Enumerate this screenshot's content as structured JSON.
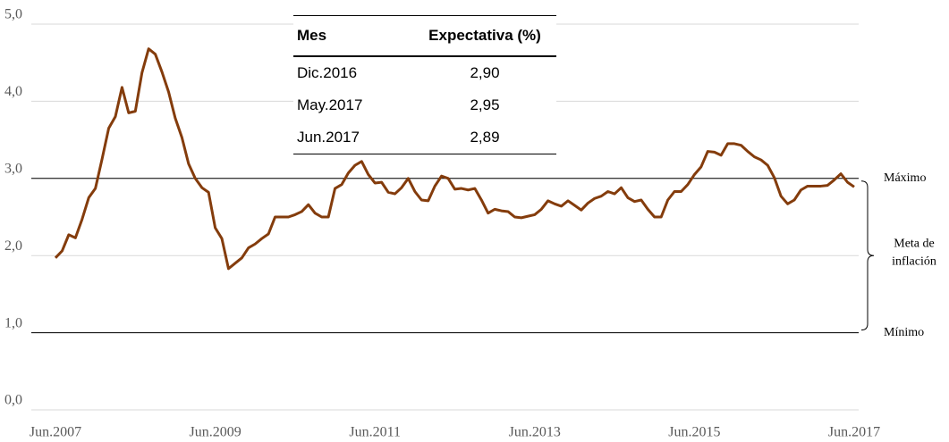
{
  "chart_data": {
    "type": "line",
    "categories": [
      "Jun.2007",
      null,
      null,
      null,
      null,
      null,
      null,
      null,
      null,
      null,
      null,
      null,
      null,
      null,
      null,
      null,
      null,
      null,
      null,
      null,
      null,
      null,
      null,
      null,
      "Jun.2009",
      null,
      null,
      null,
      null,
      null,
      null,
      null,
      null,
      null,
      null,
      null,
      null,
      null,
      null,
      null,
      null,
      null,
      null,
      null,
      null,
      null,
      null,
      null,
      "Jun.2011",
      null,
      null,
      null,
      null,
      null,
      null,
      null,
      null,
      null,
      null,
      null,
      null,
      null,
      null,
      null,
      null,
      null,
      null,
      null,
      null,
      null,
      null,
      null,
      "Jun.2013",
      null,
      null,
      null,
      null,
      null,
      null,
      null,
      null,
      null,
      null,
      null,
      null,
      null,
      null,
      null,
      null,
      null,
      null,
      null,
      null,
      null,
      null,
      null,
      "Jun.2015",
      null,
      null,
      null,
      null,
      null,
      null,
      null,
      null,
      null,
      null,
      null,
      null,
      null,
      null,
      null,
      null,
      null,
      null,
      null,
      null,
      null,
      null,
      null,
      "Jun.2017"
    ],
    "series": [
      {
        "color": "#843c0c",
        "values": [
          1.97,
          2.06,
          2.27,
          2.23,
          2.47,
          2.75,
          2.87,
          3.25,
          3.65,
          3.8,
          4.18,
          3.85,
          3.87,
          4.37,
          4.68,
          4.61,
          4.38,
          4.12,
          3.78,
          3.53,
          3.19,
          3.0,
          2.88,
          2.82,
          2.36,
          2.22,
          1.83,
          1.9,
          1.97,
          2.1,
          2.15,
          2.22,
          2.28,
          2.5,
          2.5,
          2.5,
          2.53,
          2.57,
          2.66,
          2.55,
          2.5,
          2.5,
          2.87,
          2.92,
          3.07,
          3.17,
          3.22,
          3.05,
          2.94,
          2.95,
          2.82,
          2.8,
          2.88,
          3.0,
          2.83,
          2.72,
          2.71,
          2.9,
          3.03,
          3.0,
          2.86,
          2.87,
          2.85,
          2.87,
          2.72,
          2.55,
          2.6,
          2.58,
          2.57,
          2.5,
          2.49,
          2.51,
          2.53,
          2.6,
          2.71,
          2.67,
          2.64,
          2.71,
          2.65,
          2.59,
          2.68,
          2.74,
          2.77,
          2.83,
          2.8,
          2.88,
          2.75,
          2.7,
          2.72,
          2.6,
          2.5,
          2.5,
          2.72,
          2.83,
          2.83,
          2.92,
          3.05,
          3.15,
          3.35,
          3.34,
          3.3,
          3.45,
          3.45,
          3.43,
          3.35,
          3.28,
          3.24,
          3.17,
          3.01,
          2.77,
          2.67,
          2.72,
          2.85,
          2.9,
          2.9,
          2.9,
          2.91,
          2.98,
          3.06,
          2.95,
          2.89
        ]
      }
    ],
    "ylim": [
      0,
      5
    ],
    "yticks": [
      {
        "value": 0,
        "label": "0,0"
      },
      {
        "value": 1,
        "label": "1,0"
      },
      {
        "value": 2,
        "label": "2,0"
      },
      {
        "value": 3,
        "label": "3,0"
      },
      {
        "value": 4,
        "label": "4,0"
      },
      {
        "value": 5,
        "label": "5,0"
      }
    ],
    "grid": true,
    "target_lines": [
      {
        "value": 3,
        "label": "Máximo"
      },
      {
        "value": 1,
        "label": "Mínimo"
      }
    ],
    "target_annotation": [
      "Meta de",
      "inflación"
    ],
    "table": {
      "columns": [
        "Mes",
        "Expectativa (%)"
      ],
      "rows": [
        [
          "Dic.2016",
          "2,90"
        ],
        [
          "May.2017",
          "2,95"
        ],
        [
          "Jun.2017",
          "2,89"
        ]
      ]
    }
  }
}
